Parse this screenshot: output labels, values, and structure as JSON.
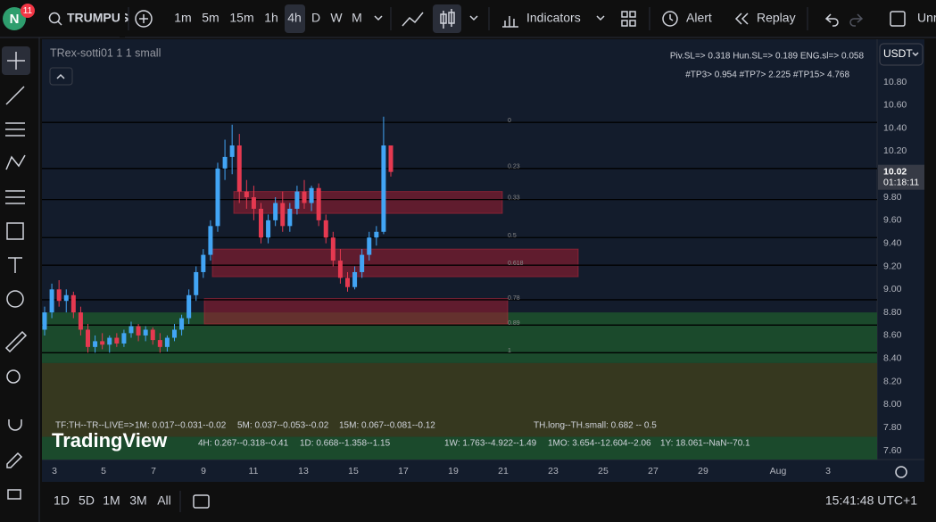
{
  "toolbar": {
    "avatar": "N",
    "badge": "11",
    "symbol": "TRUMPUS",
    "intervals": [
      "1m",
      "5m",
      "15m",
      "1h",
      "4h",
      "D",
      "W",
      "M"
    ],
    "active_interval": 4,
    "indicators": "Indicators",
    "alert": "Alert",
    "replay": "Replay",
    "cut_label": "Unr"
  },
  "logo": "TradingView",
  "chart": {
    "legend": "TRex-sotti01 1 1 small",
    "currency": "USDT",
    "price_ticks": [
      {
        "value": 10.8,
        "label": "10.80"
      },
      {
        "value": 10.6,
        "label": "10.60"
      },
      {
        "value": 10.4,
        "label": "10.40"
      },
      {
        "value": 10.2,
        "label": "10.20"
      },
      {
        "value": 9.8,
        "label": "9.80"
      },
      {
        "value": 9.6,
        "label": "9.60"
      },
      {
        "value": 9.4,
        "label": "9.40"
      },
      {
        "value": 9.2,
        "label": "9.20"
      },
      {
        "value": 9,
        "label": "9.00"
      },
      {
        "value": 8.8,
        "label": "8.80"
      },
      {
        "value": 8.6,
        "label": "8.60"
      },
      {
        "value": 8.4,
        "label": "8.40"
      },
      {
        "value": 8.2,
        "label": "8.20"
      },
      {
        "value": 8,
        "label": "8.00"
      },
      {
        "value": 7.8,
        "label": "7.80"
      },
      {
        "value": 7.6,
        "label": "7.60"
      }
    ],
    "last_price": 10.02,
    "countdown": "01:18:11",
    "dates": [
      "3",
      "5",
      "7",
      "9",
      "11",
      "13",
      "15",
      "17",
      "19",
      "21",
      "23",
      "25",
      "27",
      "29",
      "Aug",
      "3"
    ],
    "up_color": "#42a5f5",
    "down_color": "#e53950",
    "candles": [
      [
        8.65,
        8.85,
        8.6,
        8.8
      ],
      [
        8.8,
        9.05,
        8.75,
        9
      ],
      [
        9,
        9.08,
        8.85,
        8.9
      ],
      [
        8.9,
        9,
        8.8,
        8.95
      ],
      [
        8.95,
        8.98,
        8.75,
        8.8
      ],
      [
        8.8,
        8.85,
        8.6,
        8.65
      ],
      [
        8.65,
        8.7,
        8.45,
        8.5
      ],
      [
        8.5,
        8.6,
        8.45,
        8.55
      ],
      [
        8.55,
        8.62,
        8.48,
        8.52
      ],
      [
        8.52,
        8.6,
        8.45,
        8.58
      ],
      [
        8.58,
        8.62,
        8.5,
        8.53
      ],
      [
        8.53,
        8.65,
        8.5,
        8.62
      ],
      [
        8.62,
        8.72,
        8.58,
        8.68
      ],
      [
        8.68,
        8.7,
        8.55,
        8.6
      ],
      [
        8.6,
        8.68,
        8.55,
        8.65
      ],
      [
        8.65,
        8.67,
        8.52,
        8.56
      ],
      [
        8.56,
        8.62,
        8.45,
        8.5
      ],
      [
        8.5,
        8.6,
        8.46,
        8.58
      ],
      [
        8.58,
        8.7,
        8.55,
        8.65
      ],
      [
        8.65,
        8.78,
        8.6,
        8.75
      ],
      [
        8.75,
        9,
        8.7,
        8.95
      ],
      [
        8.95,
        9.2,
        8.9,
        9.15
      ],
      [
        9.15,
        9.35,
        9.1,
        9.3
      ],
      [
        9.3,
        9.6,
        9.25,
        9.55
      ],
      [
        9.55,
        10.1,
        9.5,
        10.05
      ],
      [
        10.05,
        10.3,
        9.95,
        10.15
      ],
      [
        10.15,
        10.43,
        10,
        10.25
      ],
      [
        10.25,
        10.35,
        9.75,
        9.85
      ],
      [
        9.85,
        9.95,
        9.7,
        9.8
      ],
      [
        9.8,
        9.9,
        9.6,
        9.7
      ],
      [
        9.7,
        9.75,
        9.4,
        9.45
      ],
      [
        9.45,
        9.65,
        9.4,
        9.6
      ],
      [
        9.6,
        9.8,
        9.55,
        9.75
      ],
      [
        9.75,
        9.85,
        9.5,
        9.55
      ],
      [
        9.55,
        9.75,
        9.5,
        9.7
      ],
      [
        9.7,
        9.9,
        9.65,
        9.85
      ],
      [
        9.85,
        9.95,
        9.7,
        9.75
      ],
      [
        9.75,
        9.9,
        9.68,
        9.88
      ],
      [
        9.88,
        9.92,
        9.55,
        9.6
      ],
      [
        9.6,
        9.65,
        9.4,
        9.45
      ],
      [
        9.45,
        9.5,
        9.2,
        9.25
      ],
      [
        9.25,
        9.35,
        9.05,
        9.1
      ],
      [
        9.1,
        9.15,
        8.98,
        9.02
      ],
      [
        9.02,
        9.2,
        9,
        9.15
      ],
      [
        9.15,
        9.35,
        9.1,
        9.3
      ],
      [
        9.3,
        9.5,
        9.25,
        9.45
      ],
      [
        9.45,
        9.55,
        9.38,
        9.5
      ],
      [
        9.5,
        10.5,
        9.48,
        10.25
      ],
      [
        10.25,
        10.25,
        9.98,
        10.02
      ]
    ],
    "levels": [
      {
        "price": 10.45,
        "label": "0"
      },
      {
        "price": 10.05,
        "label": "0.23"
      },
      {
        "price": 9.78,
        "label": "0.33"
      },
      {
        "price": 9.45,
        "label": "0.5"
      },
      {
        "price": 9.21,
        "label": "0.618"
      },
      {
        "price": 8.91,
        "label": "0.78"
      },
      {
        "price": 8.69,
        "label": "0.89"
      },
      {
        "price": 8.45,
        "label": "1"
      }
    ],
    "bands": [
      {
        "top": 8.8,
        "bottom": 8.36,
        "color": "#1b4a2c"
      },
      {
        "top": 8.36,
        "bottom": 7.72,
        "color": "#36381f"
      },
      {
        "top": 7.72,
        "bottom": 7.4,
        "color": "#1b4a2c"
      }
    ],
    "zones": [
      {
        "top": 9.85,
        "bottom": 9.66
      },
      {
        "top": 9.35,
        "bottom": 9.11
      },
      {
        "top": 8.92,
        "bottom": 8.7
      }
    ]
  },
  "info": {
    "top": [
      {
        "text": "Piv.SL=> 0.318  Hun.SL=> 0.189  ENG.sl=> 0.058",
        "color": "#f23645"
      },
      {
        "text": "#TP3> 0.954  #TP7> 2.225  #TP15> 4.768",
        "color": "#4caf50"
      }
    ],
    "row1": [
      {
        "text": "TF:TH--TR--LIVE=>",
        "color": "#ff9800"
      },
      {
        "text": "1M: 0.017--0.031--0.02",
        "color": "#ff9800"
      },
      {
        "text": "5M: 0.037--0.053--0.02",
        "color": "#ff9800"
      },
      {
        "text": "15M: 0.067--0.081--0.12",
        "color": "#ff9800"
      },
      {
        "text": "TH.long--TH.small: 0.682 -- 0.5",
        "color": "#4caf50"
      }
    ],
    "row2": [
      {
        "text": "4H: 0.267--0.318--0.41",
        "color": "#2196f3"
      },
      {
        "text": "1D: 0.668--1.358--1.15",
        "color": "#2196f3"
      },
      {
        "text": "1W: 1.763--4.922--1.49",
        "color": "#e6c700"
      },
      {
        "text": "1MO: 3.654--12.604--2.06",
        "color": "#e6c700"
      },
      {
        "text": "1Y: 18.061--NaN--70.1",
        "color": "#e6c700"
      }
    ]
  },
  "bottom": {
    "ranges": [
      "1D",
      "5D",
      "1M",
      "3M",
      "All"
    ],
    "clock": "15:41:48 UTC+1"
  }
}
